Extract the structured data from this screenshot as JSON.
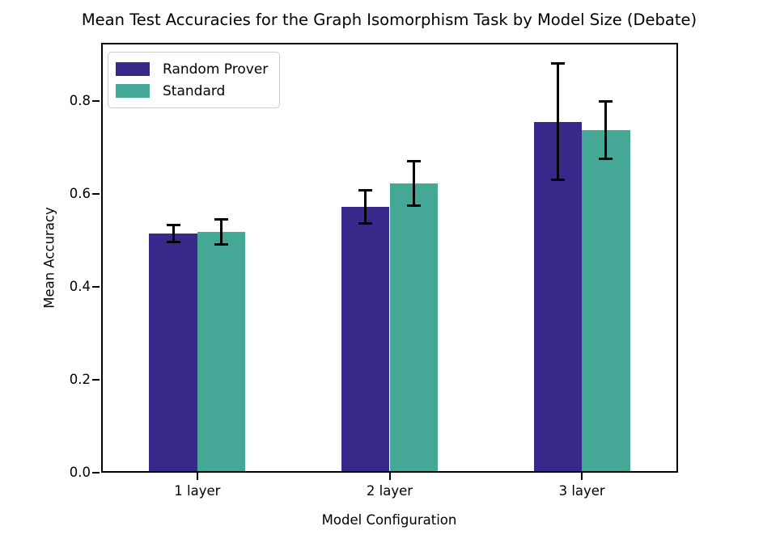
{
  "chart_data": {
    "type": "bar",
    "title": "Mean Test Accuracies for the Graph Isomorphism Task by Model Size (Debate)",
    "xlabel": "Model Configuration",
    "ylabel": "Mean Accuracy",
    "categories": [
      "1 layer",
      "2 layer",
      "3 layer"
    ],
    "series": [
      {
        "name": "Random Prover",
        "color": "#37288a",
        "values": [
          0.515,
          0.572,
          0.755
        ],
        "errors": [
          0.018,
          0.036,
          0.125
        ]
      },
      {
        "name": "Standard",
        "color": "#45a897",
        "values": [
          0.518,
          0.623,
          0.737
        ],
        "errors": [
          0.027,
          0.048,
          0.062
        ]
      }
    ],
    "ylim": [
      0,
      0.925
    ],
    "yticks": [
      0.0,
      0.2,
      0.4,
      0.6,
      0.8
    ],
    "ytick_labels": [
      "0.0",
      "0.2",
      "0.4",
      "0.6",
      "0.8"
    ],
    "grid": false,
    "legend_position": "upper left",
    "error_bar_color": "#000000",
    "axis_color": "#000000",
    "background_color": "#ffffff"
  }
}
